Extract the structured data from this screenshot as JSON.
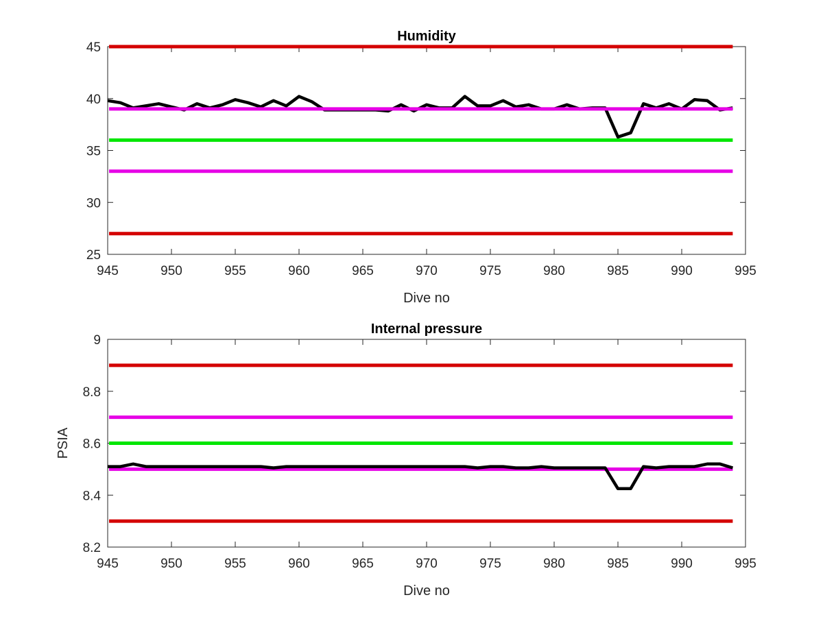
{
  "chart_data": [
    {
      "type": "line",
      "title": "Humidity",
      "xlabel": "Dive no",
      "ylabel": "",
      "xlim": [
        945,
        995
      ],
      "ylim": [
        25,
        45
      ],
      "xticks": [
        945,
        950,
        955,
        960,
        965,
        970,
        975,
        980,
        985,
        990,
        995
      ],
      "yticks": [
        25,
        30,
        35,
        40,
        45
      ],
      "grid": false,
      "colors": {
        "data": "#000000",
        "red": "#d40000",
        "magenta": "#e600e6",
        "green": "#00e600"
      },
      "limit_lines": [
        {
          "value": 45,
          "color": "#d40000"
        },
        {
          "value": 39,
          "color": "#e600e6"
        },
        {
          "value": 36,
          "color": "#00e600"
        },
        {
          "value": 33,
          "color": "#e600e6"
        },
        {
          "value": 27,
          "color": "#d40000"
        }
      ],
      "series": [
        {
          "x": [
            945,
            946,
            947,
            948,
            949,
            950,
            951,
            952,
            953,
            954,
            955,
            956,
            957,
            958,
            959,
            960,
            961,
            962,
            963,
            964,
            965,
            966,
            967,
            968,
            969,
            970,
            971,
            972,
            973,
            974,
            975,
            976,
            977,
            978,
            979,
            980,
            981,
            982,
            983,
            984,
            985,
            986,
            987,
            988,
            989,
            990,
            991,
            992,
            993,
            994
          ],
          "values": [
            39.8,
            39.6,
            39.1,
            39.3,
            39.5,
            39.2,
            38.9,
            39.5,
            39.1,
            39.4,
            39.9,
            39.6,
            39.2,
            39.8,
            39.3,
            40.2,
            39.7,
            38.9,
            38.9,
            38.9,
            38.9,
            38.9,
            38.8,
            39.4,
            38.8,
            39.4,
            39.1,
            39.1,
            40.2,
            39.3,
            39.3,
            39.8,
            39.2,
            39.4,
            39.0,
            39.0,
            39.4,
            39.0,
            39.1,
            39.1,
            36.3,
            36.7,
            39.5,
            39.1,
            39.5,
            39.0,
            39.9,
            39.8,
            38.9,
            39.1
          ]
        }
      ]
    },
    {
      "type": "line",
      "title": "Internal pressure",
      "xlabel": "Dive no",
      "ylabel": "PSIA",
      "xlim": [
        945,
        995
      ],
      "ylim": [
        8.2,
        9
      ],
      "xticks": [
        945,
        950,
        955,
        960,
        965,
        970,
        975,
        980,
        985,
        990,
        995
      ],
      "yticks": [
        "8.2",
        "8.4",
        "8.6",
        "8.8",
        "9"
      ],
      "grid": false,
      "colors": {
        "data": "#000000",
        "red": "#d40000",
        "magenta": "#e600e6",
        "green": "#00e600"
      },
      "limit_lines": [
        {
          "value": 8.9,
          "color": "#d40000"
        },
        {
          "value": 8.7,
          "color": "#e600e6"
        },
        {
          "value": 8.6,
          "color": "#00e600"
        },
        {
          "value": 8.5,
          "color": "#e600e6"
        },
        {
          "value": 8.3,
          "color": "#d40000"
        }
      ],
      "series": [
        {
          "x": [
            945,
            946,
            947,
            948,
            949,
            950,
            951,
            952,
            953,
            954,
            955,
            956,
            957,
            958,
            959,
            960,
            961,
            962,
            963,
            964,
            965,
            966,
            967,
            968,
            969,
            970,
            971,
            972,
            973,
            974,
            975,
            976,
            977,
            978,
            979,
            980,
            981,
            982,
            983,
            984,
            985,
            986,
            987,
            988,
            989,
            990,
            991,
            992,
            993,
            994
          ],
          "values": [
            8.51,
            8.51,
            8.52,
            8.51,
            8.51,
            8.51,
            8.51,
            8.51,
            8.51,
            8.51,
            8.51,
            8.51,
            8.51,
            8.505,
            8.51,
            8.51,
            8.51,
            8.51,
            8.51,
            8.51,
            8.51,
            8.51,
            8.51,
            8.51,
            8.51,
            8.51,
            8.51,
            8.51,
            8.51,
            8.505,
            8.51,
            8.51,
            8.505,
            8.505,
            8.51,
            8.505,
            8.505,
            8.505,
            8.505,
            8.505,
            8.425,
            8.425,
            8.51,
            8.505,
            8.51,
            8.51,
            8.51,
            8.52,
            8.52,
            8.505
          ]
        }
      ]
    }
  ]
}
